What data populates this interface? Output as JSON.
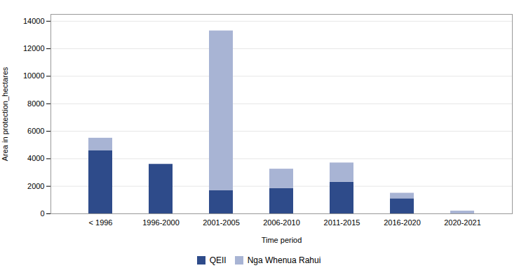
{
  "chart_data": {
    "type": "bar",
    "stacked": true,
    "categories": [
      "< 1996",
      "1996-2000",
      "2001-2005",
      "2006-2010",
      "2011-2015",
      "2016-2020",
      "2020-2021"
    ],
    "series": [
      {
        "name": "QEII",
        "color": "#2E4B8A",
        "values": [
          4600,
          3600,
          1700,
          1850,
          2300,
          1100,
          0
        ]
      },
      {
        "name": "Nga Whenua Rahui",
        "color": "#A8B4D4",
        "values": [
          900,
          0,
          11600,
          1400,
          1400,
          400,
          200
        ]
      }
    ],
    "xlabel": "Time period",
    "ylabel": "Area in protection_hectares",
    "ylim": [
      0,
      14500
    ],
    "yticks": [
      0,
      2000,
      4000,
      6000,
      8000,
      10000,
      12000,
      14000
    ],
    "grid": true,
    "legend": "bottom"
  }
}
